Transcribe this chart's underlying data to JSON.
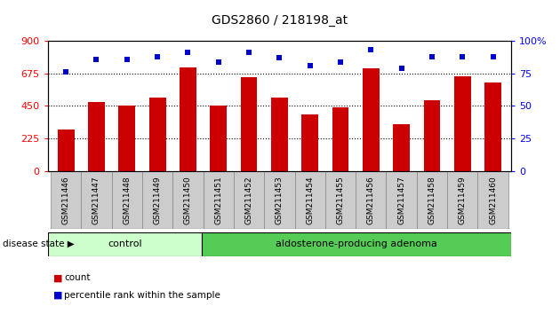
{
  "title": "GDS2860 / 218198_at",
  "samples": [
    "GSM211446",
    "GSM211447",
    "GSM211448",
    "GSM211449",
    "GSM211450",
    "GSM211451",
    "GSM211452",
    "GSM211453",
    "GSM211454",
    "GSM211455",
    "GSM211456",
    "GSM211457",
    "GSM211458",
    "GSM211459",
    "GSM211460"
  ],
  "counts": [
    285,
    480,
    455,
    510,
    715,
    455,
    650,
    510,
    390,
    440,
    710,
    325,
    490,
    655,
    610
  ],
  "percentiles": [
    76,
    86,
    86,
    88,
    91,
    84,
    91,
    87,
    81,
    84,
    93,
    79,
    88,
    88,
    88
  ],
  "bar_color": "#cc0000",
  "dot_color": "#0000cc",
  "left_ylim": [
    0,
    900
  ],
  "right_ylim": [
    0,
    100
  ],
  "left_yticks": [
    0,
    225,
    450,
    675,
    900
  ],
  "right_yticks": [
    0,
    25,
    50,
    75,
    100
  ],
  "right_yticklabels": [
    "0",
    "25",
    "50",
    "75",
    "100%"
  ],
  "dotted_lines": [
    225,
    450,
    675
  ],
  "n_control": 5,
  "control_label": "control",
  "adenoma_label": "aldosterone-producing adenoma",
  "disease_label": "disease state",
  "legend_count": "count",
  "legend_percentile": "percentile rank within the sample",
  "control_bg": "#ccffcc",
  "adenoma_bg": "#55cc55",
  "xlabel_bg": "#cccccc",
  "bar_width": 0.55
}
